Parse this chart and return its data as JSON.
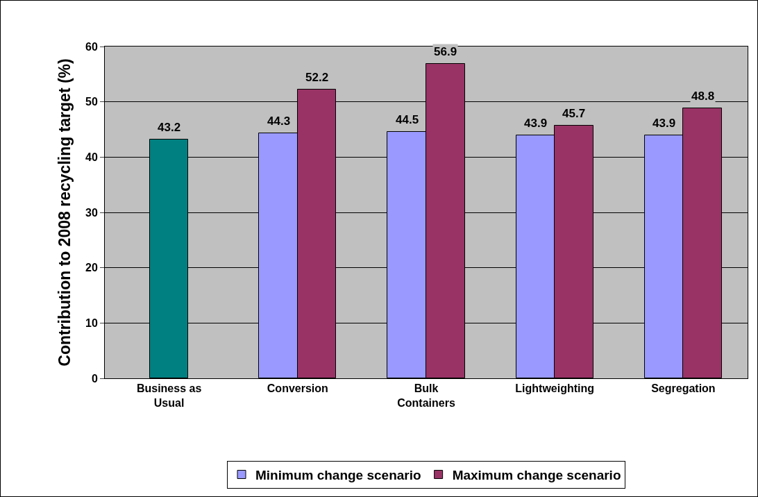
{
  "chart_data": {
    "type": "bar",
    "ylabel": "Contribution to 2008 recycling target (%)",
    "categories": [
      "Business as Usual",
      "Conversion",
      "Bulk Containers",
      "Lightweighting",
      "Segregation"
    ],
    "series": [
      {
        "color": "#008080",
        "values": [
          43.2,
          null,
          null,
          null,
          null
        ]
      },
      {
        "name": "Minimum change scenario",
        "color": "#9999ff",
        "values": [
          null,
          44.3,
          44.5,
          43.9,
          43.9
        ]
      },
      {
        "name": "Maximum change scenario",
        "color": "#993366",
        "values": [
          null,
          52.2,
          56.9,
          45.7,
          48.8
        ]
      }
    ],
    "ylim": [
      0,
      60
    ],
    "yticks": [
      0,
      10,
      20,
      30,
      40,
      50,
      60
    ],
    "grid": "y",
    "legend": "bottom",
    "data_labels": true
  }
}
